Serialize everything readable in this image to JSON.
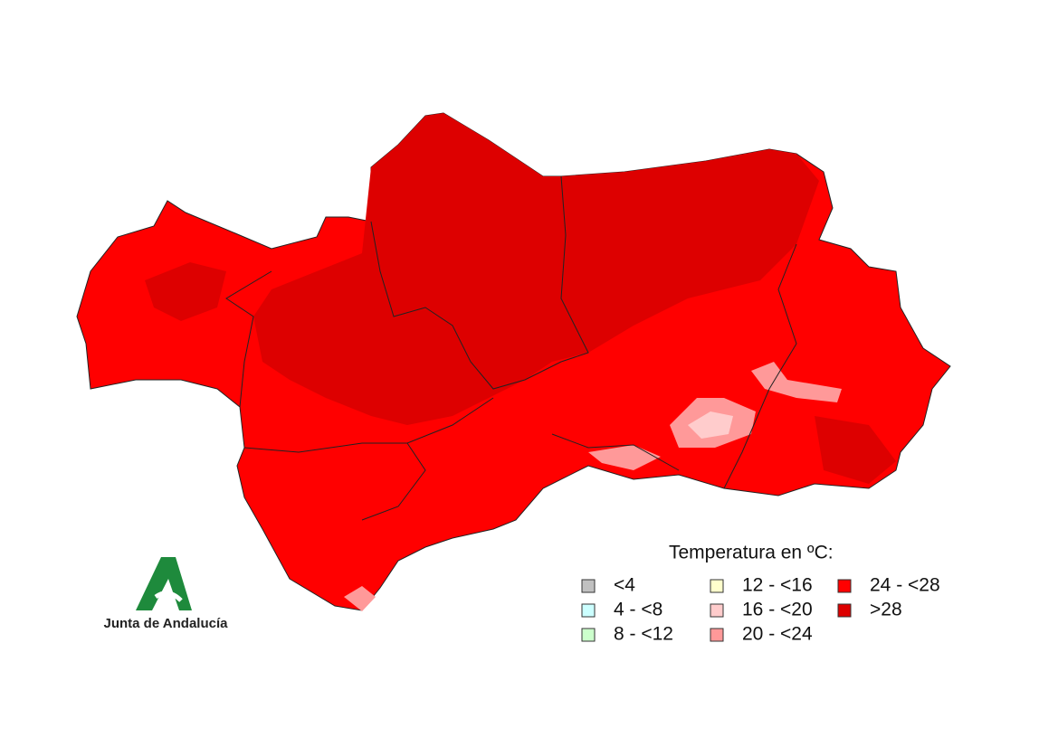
{
  "legend": {
    "title": "Temperatura en ºC:",
    "items": [
      {
        "label": "<4",
        "color": "#c0c0c0"
      },
      {
        "label": "4 - <8",
        "color": "#ccffff"
      },
      {
        "label": "8 - <12",
        "color": "#ccffcc"
      },
      {
        "label": "12 - <16",
        "color": "#ffffcc"
      },
      {
        "label": "16 - <20",
        "color": "#ffcccc"
      },
      {
        "label": "20 - <24",
        "color": "#ff9999"
      },
      {
        "label": "24 - <28",
        "color": "#ff0000"
      },
      {
        "label": ">28",
        "color": "#dd0000"
      }
    ]
  },
  "logo": {
    "text": "Junta de Andalucía"
  }
}
